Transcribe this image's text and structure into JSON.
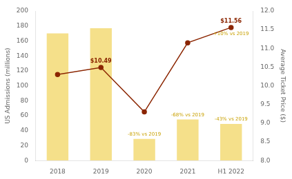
{
  "chart_data": {
    "type": "bar",
    "categories": [
      "2018",
      "2019",
      "2020",
      "2021",
      "H1 2022"
    ],
    "series": [
      {
        "type": "bar",
        "color": "#f5e08a",
        "values": [
          170,
          177,
          29,
          55,
          49
        ]
      },
      {
        "type": "line",
        "color": "#8B2500",
        "marker": "o",
        "axis": "y2",
        "values": [
          10.3,
          10.49,
          9.3,
          11.15,
          11.56
        ]
      }
    ],
    "ylabel": "US Admissions (millions)",
    "y2label": "Average Ticket Price ($)",
    "ylim": [
      0,
      200
    ],
    "yticks": [
      0,
      20,
      40,
      60,
      80,
      100,
      120,
      140,
      160,
      180,
      200
    ],
    "y2lim": [
      8.0,
      12.0
    ],
    "y2ticks": [
      {
        "value": 8.0,
        "label": "8.0"
      },
      {
        "value": 8.5,
        "label": "8.5"
      },
      {
        "value": 9.0,
        "label": "9.0"
      },
      {
        "value": 9.5,
        "label": "9.5"
      },
      {
        "value": 10.0,
        "label": "10.0"
      },
      {
        "value": 10.5,
        "label": "10.5"
      },
      {
        "value": 11.0,
        "label": "11.0"
      },
      {
        "value": 11.5,
        "label": "11.5"
      },
      {
        "value": 12.0,
        "label": "12.0"
      }
    ],
    "grid": false,
    "annotations": [
      {
        "text": "-83% vs 2019",
        "x": "2020",
        "y": 29,
        "color": "#c8a000"
      },
      {
        "text": "-68% vs 2019",
        "x": "2021",
        "y": 55,
        "color": "#c8a000"
      },
      {
        "text": "-43% vs 2019",
        "x": "H1 2022",
        "y": 49,
        "color": "#c8a000"
      },
      {
        "text": "$10.49",
        "x": "2019",
        "y": 10.49,
        "axis": "y2",
        "color": "#8B2500"
      },
      {
        "text": "$11.56",
        "x": "H1 2022",
        "y": 11.56,
        "axis": "y2",
        "color": "#8B2500"
      },
      {
        "text": "+10% vs 2019",
        "x": "H1 2022",
        "y": 11.56,
        "axis": "y2",
        "color": "#c8a000"
      }
    ]
  }
}
